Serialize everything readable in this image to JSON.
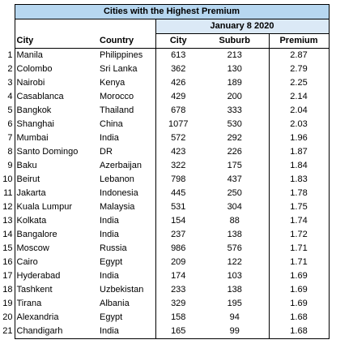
{
  "title": "Cities with the Highest Premium",
  "date": "January 8 2020",
  "headers": {
    "city": "City",
    "country": "Country",
    "city_value": "City",
    "suburb": "Suburb",
    "premium": "Premium"
  },
  "rows": [
    {
      "rank": "1",
      "city": "Manila",
      "country": "Philippines",
      "city_value": "613",
      "suburb": "213",
      "premium": "2.87"
    },
    {
      "rank": "2",
      "city": "Colombo",
      "country": "Sri Lanka",
      "city_value": "362",
      "suburb": "130",
      "premium": "2.79"
    },
    {
      "rank": "3",
      "city": "Nairobi",
      "country": "Kenya",
      "city_value": "426",
      "suburb": "189",
      "premium": "2.25"
    },
    {
      "rank": "4",
      "city": "Casablanca",
      "country": "Morocco",
      "city_value": "429",
      "suburb": "200",
      "premium": "2.14"
    },
    {
      "rank": "5",
      "city": "Bangkok",
      "country": "Thailand",
      "city_value": "678",
      "suburb": "333",
      "premium": "2.04"
    },
    {
      "rank": "6",
      "city": "Shanghai",
      "country": "China",
      "city_value": "1077",
      "suburb": "530",
      "premium": "2.03"
    },
    {
      "rank": "7",
      "city": "Mumbai",
      "country": "India",
      "city_value": "572",
      "suburb": "292",
      "premium": "1.96"
    },
    {
      "rank": "8",
      "city": "Santo Domingo",
      "country": "DR",
      "city_value": "423",
      "suburb": "226",
      "premium": "1.87"
    },
    {
      "rank": "9",
      "city": "Baku",
      "country": "Azerbaijan",
      "city_value": "322",
      "suburb": "175",
      "premium": "1.84"
    },
    {
      "rank": "10",
      "city": "Beirut",
      "country": "Lebanon",
      "city_value": "798",
      "suburb": "437",
      "premium": "1.83"
    },
    {
      "rank": "11",
      "city": "Jakarta",
      "country": "Indonesia",
      "city_value": "445",
      "suburb": "250",
      "premium": "1.78"
    },
    {
      "rank": "12",
      "city": "Kuala Lumpur",
      "country": "Malaysia",
      "city_value": "531",
      "suburb": "304",
      "premium": "1.75"
    },
    {
      "rank": "13",
      "city": "Kolkata",
      "country": "India",
      "city_value": "154",
      "suburb": "88",
      "premium": "1.74"
    },
    {
      "rank": "14",
      "city": "Bangalore",
      "country": "India",
      "city_value": "237",
      "suburb": "138",
      "premium": "1.72"
    },
    {
      "rank": "15",
      "city": "Moscow",
      "country": "Russia",
      "city_value": "986",
      "suburb": "576",
      "premium": "1.71"
    },
    {
      "rank": "16",
      "city": "Cairo",
      "country": "Egypt",
      "city_value": "209",
      "suburb": "122",
      "premium": "1.71"
    },
    {
      "rank": "17",
      "city": "Hyderabad",
      "country": "India",
      "city_value": "174",
      "suburb": "103",
      "premium": "1.69"
    },
    {
      "rank": "18",
      "city": "Tashkent",
      "country": "Uzbekistan",
      "city_value": "233",
      "suburb": "138",
      "premium": "1.69"
    },
    {
      "rank": "19",
      "city": "Tirana",
      "country": "Albania",
      "city_value": "329",
      "suburb": "195",
      "premium": "1.69"
    },
    {
      "rank": "20",
      "city": "Alexandria",
      "country": "Egypt",
      "city_value": "158",
      "suburb": "94",
      "premium": "1.68"
    },
    {
      "rank": "21",
      "city": "Chandigarh",
      "country": "India",
      "city_value": "165",
      "suburb": "99",
      "premium": "1.68"
    }
  ]
}
